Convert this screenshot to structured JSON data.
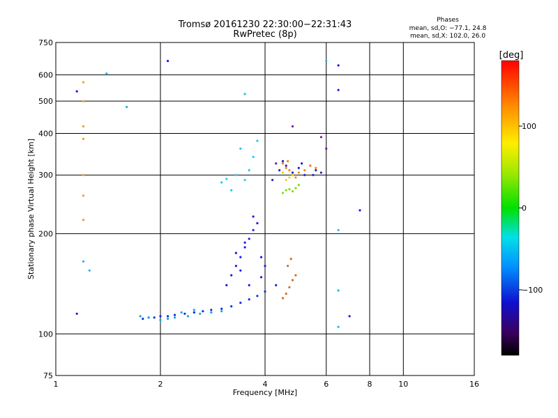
{
  "chart_data": {
    "type": "scatter",
    "title": "Tromsø 20161230 22:30:00−22:31:43",
    "subtitle": "RwPretec (8p)",
    "phase_info": {
      "title": "Phases",
      "line_o": "mean, sd,O: −77.1, 24.8",
      "line_x": "mean, sd,X: 102.0, 26.0"
    },
    "xlabel": "Frequency [MHz]",
    "ylabel": "Stationary phase Virtual Height [km]",
    "x_scale": "log",
    "y_scale": "log",
    "xlim": [
      1,
      16
    ],
    "ylim": [
      75,
      750
    ],
    "x_ticks": [
      1,
      2,
      4,
      6,
      8,
      10,
      16
    ],
    "x_tick_labels": [
      "1",
      "2",
      "4",
      "6",
      "8",
      "10",
      "16"
    ],
    "x_grid": [
      2,
      4,
      6,
      8,
      10
    ],
    "y_ticks": [
      75,
      100,
      200,
      300,
      400,
      500,
      600,
      750
    ],
    "y_tick_labels": [
      "75",
      "100",
      "200",
      "300",
      "400",
      "500",
      "600",
      "750"
    ],
    "y_grid": [
      100,
      200,
      300,
      400,
      500,
      600
    ],
    "grid": true,
    "colorbar": {
      "title": "[deg]",
      "min": -180,
      "max": 180,
      "ticks": [
        100,
        0,
        -100
      ],
      "tick_labels": [
        "100",
        "0",
        "−100"
      ],
      "placement": "right"
    },
    "series": [
      {
        "color": "#0a2fe0",
        "x": [
          1.78,
          1.85,
          1.92,
          2.0,
          2.1,
          2.2,
          2.35,
          2.5,
          2.65,
          2.8,
          3.0,
          3.2,
          3.4,
          3.6,
          3.8,
          4.0,
          4.3
        ],
        "y": [
          111,
          112,
          112,
          113,
          113,
          114,
          115,
          116,
          117,
          118,
          119,
          121,
          124,
          127,
          130,
          134,
          140
        ]
      },
      {
        "color": "#1a1ae8",
        "x": [
          3.1,
          3.2,
          3.3,
          3.4,
          3.5,
          3.6,
          3.7,
          3.8,
          3.9,
          4.0,
          3.3,
          3.5,
          3.7,
          3.4,
          3.6,
          3.9
        ],
        "y": [
          140,
          150,
          160,
          170,
          182,
          193,
          205,
          215,
          170,
          160,
          175,
          188,
          225,
          155,
          140,
          148
        ]
      },
      {
        "color": "#12a8e8",
        "x": [
          1.75,
          1.85,
          2.0,
          2.1,
          2.2,
          2.4,
          2.6,
          2.8,
          3.0,
          2.3,
          2.5
        ],
        "y": [
          113,
          112,
          110,
          111,
          112,
          113,
          115,
          116,
          117,
          116,
          118
        ]
      },
      {
        "color": "#22c8f0",
        "x": [
          3.0,
          3.1,
          3.3,
          3.5,
          3.6,
          3.7,
          3.4,
          3.8,
          3.2
        ],
        "y": [
          285,
          292,
          300,
          290,
          310,
          340,
          360,
          380,
          270
        ]
      },
      {
        "color": "#2020c0",
        "x": [
          4.4,
          4.6,
          4.8,
          5.0,
          5.2,
          5.4,
          5.6,
          5.8,
          4.2,
          4.5,
          5.1,
          5.5
        ],
        "y": [
          310,
          320,
          305,
          315,
          300,
          320,
          310,
          305,
          290,
          330,
          325,
          300
        ]
      },
      {
        "color": "#f08a10",
        "x": [
          4.5,
          4.6,
          4.7,
          4.8,
          5.0,
          5.2,
          5.4,
          5.6,
          4.65,
          4.9
        ],
        "y": [
          325,
          315,
          310,
          300,
          305,
          310,
          320,
          315,
          330,
          295
        ]
      },
      {
        "color": "#e06a10",
        "x": [
          4.5,
          4.6,
          4.7,
          4.8,
          4.9,
          4.65,
          4.75
        ],
        "y": [
          128,
          132,
          138,
          145,
          150,
          160,
          168
        ]
      },
      {
        "color": "#80e010",
        "x": [
          4.5,
          4.6,
          4.7,
          4.8,
          4.9,
          5.0
        ],
        "y": [
          265,
          270,
          272,
          268,
          274,
          280
        ]
      },
      {
        "color": "#f0d010",
        "x": [
          4.6,
          4.7,
          4.8,
          4.5
        ],
        "y": [
          290,
          295,
          300,
          305
        ]
      },
      {
        "color": "#7a10b0",
        "x": [
          5.8,
          6.0,
          4.3,
          4.8
        ],
        "y": [
          390,
          360,
          325,
          420
        ]
      },
      {
        "color": "#f0a020",
        "x": [
          1.2,
          1.2,
          1.2,
          1.2,
          1.2,
          1.2,
          1.2
        ],
        "y": [
          570,
          500,
          420,
          385,
          300,
          260,
          220
        ]
      },
      {
        "color": "#20b0f0",
        "x": [
          1.2,
          1.4,
          1.6,
          1.25
        ],
        "y": [
          165,
          605,
          480,
          155
        ]
      },
      {
        "color": "#1a1ae0",
        "x": [
          1.15,
          1.15,
          2.1,
          6.5,
          6.5,
          7.5,
          7.0
        ],
        "y": [
          535,
          115,
          660,
          640,
          540,
          235,
          113
        ]
      },
      {
        "color": "#20c0d0",
        "x": [
          6.5,
          6.5,
          6.5,
          6.0,
          3.5
        ],
        "y": [
          205,
          135,
          105,
          660,
          525
        ]
      }
    ]
  }
}
